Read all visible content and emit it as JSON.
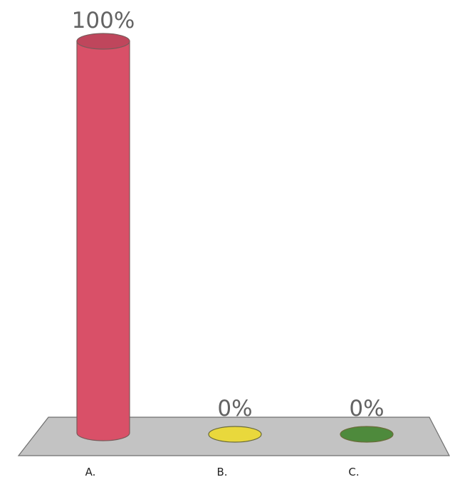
{
  "chart_data": {
    "type": "bar",
    "style": "3d-cylinder",
    "categories": [
      "A.",
      "B.",
      "C."
    ],
    "values": [
      100,
      0,
      0
    ],
    "value_labels": [
      "100%",
      "0%",
      "0%"
    ],
    "colors": [
      "#d95068",
      "#e9d83c",
      "#4e8a3c"
    ],
    "ylim": [
      0,
      100
    ],
    "grid": false,
    "legend": false,
    "floor_color": "#c3c3c3"
  }
}
